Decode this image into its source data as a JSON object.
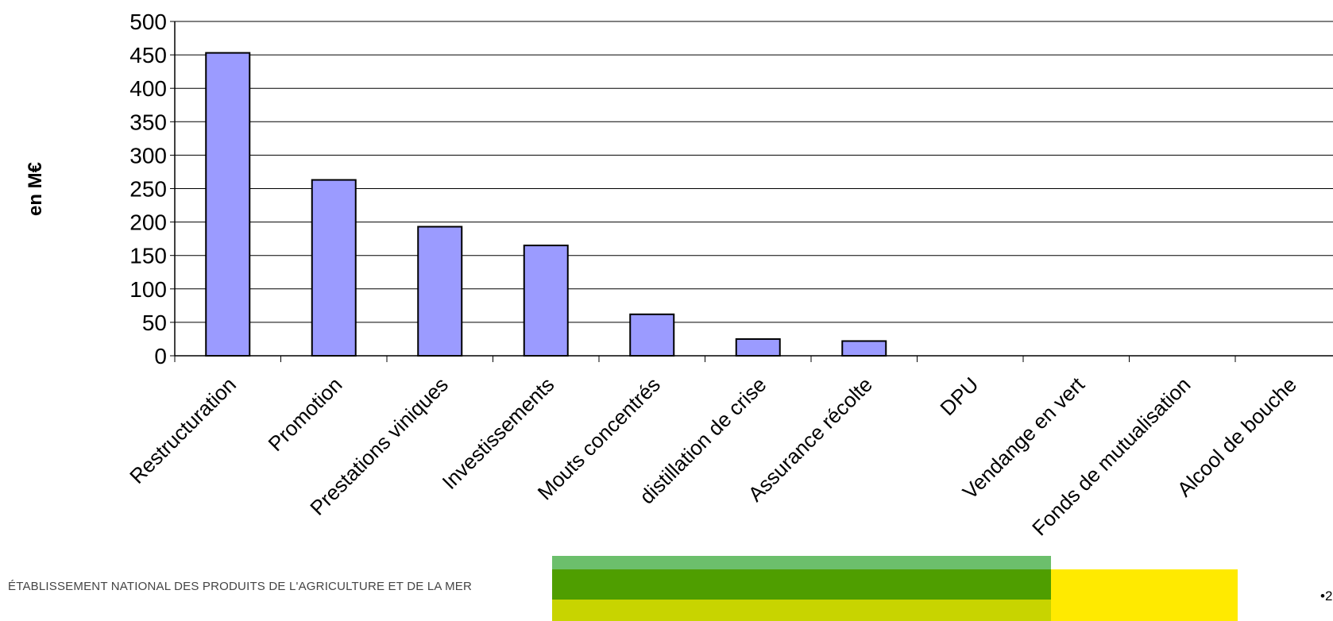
{
  "chart_data": {
    "type": "bar",
    "ylabel": "en M€",
    "ylim": [
      0,
      500
    ],
    "yticks": [
      0,
      50,
      100,
      150,
      200,
      250,
      300,
      350,
      400,
      450,
      500
    ],
    "grid": true,
    "categories": [
      "Restructuration",
      "Promotion",
      "Prestations viniques",
      "Investissements",
      "Mouts concentrés",
      "distillation de crise",
      "Assurance récolte",
      "DPU",
      "Vendange en vert",
      "Fonds de mutualisation",
      "Alcool de bouche"
    ],
    "values": [
      453,
      263,
      193,
      165,
      62,
      25,
      22,
      0,
      0,
      0,
      0
    ],
    "colors": {
      "bar": "#9b9bff",
      "bar_stroke": "#000000",
      "grid": "#000000"
    }
  },
  "footer": {
    "organization": "ÉTABLISSEMENT NATIONAL DES PRODUITS DE L'AGRICULTURE ET DE LA MER",
    "page_number": "•2",
    "band_colors": [
      "#6cbf6c",
      "#4f9e00",
      "#c8d400",
      "#ffea00"
    ]
  }
}
